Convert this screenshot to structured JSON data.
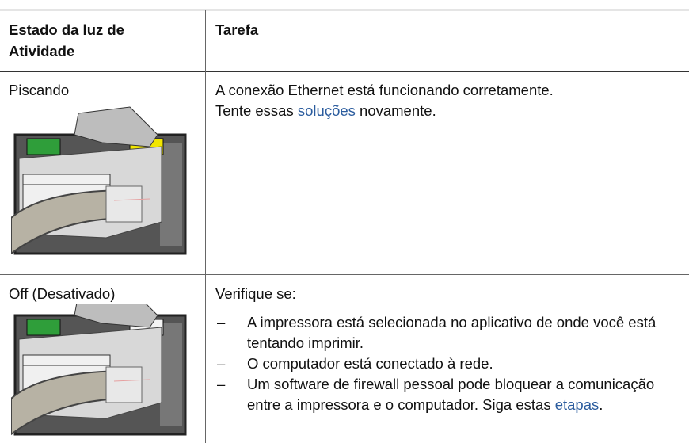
{
  "table": {
    "header": {
      "col1": "Estado da luz de Atividade",
      "col2": "Tarefa"
    },
    "rows": [
      {
        "state": "Piscando",
        "light": "#f2e600",
        "task": {
          "intro": "A conexão Ethernet está funcionando corretamente.",
          "before": "Tente essas",
          "link": "soluções",
          "after": "novamente."
        }
      },
      {
        "state": "Off (Desativado)",
        "light": "#f4f4f4",
        "task": {
          "intro": "Verifique se:",
          "items": [
            {
              "marker": "–",
              "text": "A impressora está selecionada no aplicativo de onde você está tentando imprimir."
            },
            {
              "marker": "–",
              "text": "O computador está conectado à rede."
            },
            {
              "marker": "–",
              "text": "Um software de firewall pessoal pode bloquear a comunicação entre a impressora e o computador. Siga estas",
              "link": "etapas",
              "after": "."
            }
          ]
        }
      }
    ]
  }
}
